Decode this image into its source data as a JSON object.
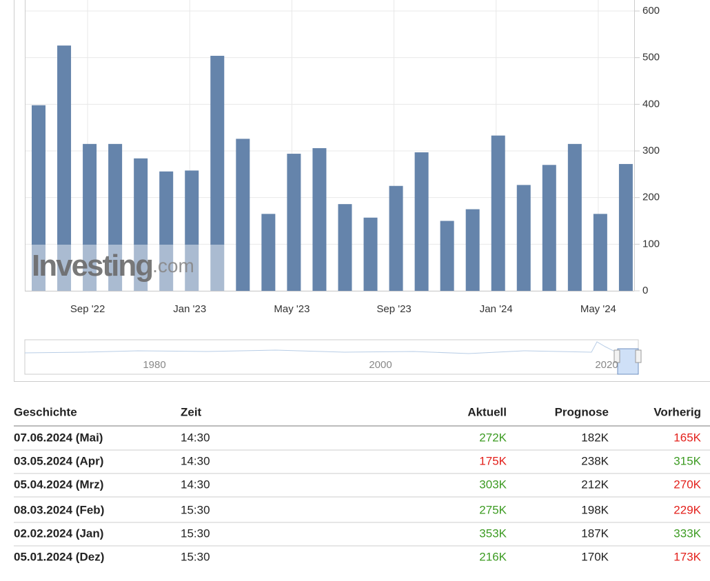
{
  "chart_data": {
    "type": "bar",
    "categories": [
      null,
      null,
      "Sep '22",
      null,
      null,
      null,
      "Jan '23",
      null,
      null,
      null,
      "May '23",
      null,
      null,
      null,
      "Sep '23",
      null,
      null,
      null,
      "Jan '24",
      null,
      null,
      null,
      "May '24",
      null
    ],
    "values": [
      398,
      526,
      315,
      315,
      284,
      256,
      258,
      504,
      326,
      165,
      294,
      306,
      186,
      157,
      225,
      297,
      150,
      175,
      333,
      227,
      270,
      315,
      165,
      272
    ],
    "color": "#6584ab",
    "ylim": [
      0,
      600
    ],
    "yticks": [
      0,
      100,
      200,
      300,
      400,
      500,
      600
    ],
    "grid": true,
    "watermark": [
      "Investing",
      ".com"
    ],
    "navigator_labels": [
      "1980",
      "2000",
      "2020"
    ]
  },
  "table": {
    "headers": [
      "Geschichte",
      "Zeit",
      "Aktuell",
      "Prognose",
      "Vorherig"
    ],
    "rows": [
      [
        "07.06.2024 (Mai)",
        "14:30",
        "272K",
        "182K",
        "165K"
      ],
      [
        "03.05.2024 (Apr)",
        "14:30",
        "175K",
        "238K",
        "315K"
      ],
      [
        "05.04.2024 (Mrz)",
        "14:30",
        "303K",
        "212K",
        "270K"
      ],
      [
        "08.03.2024 (Feb)",
        "15:30",
        "275K",
        "198K",
        "229K"
      ],
      [
        "02.02.2024 (Jan)",
        "15:30",
        "353K",
        "187K",
        "333K"
      ],
      [
        "05.01.2024 (Dez)",
        "15:30",
        "216K",
        "170K",
        "173K"
      ]
    ],
    "aktuell_colors": [
      "#3c9b22",
      "#e3201b",
      "#3c9b22",
      "#3c9b22",
      "#3c9b22",
      "#3c9b22"
    ],
    "vorherig_colors": [
      "#e3201b",
      "#3c9b22",
      "#e3201b",
      "#e3201b",
      "#3c9b22",
      "#e3201b"
    ]
  }
}
